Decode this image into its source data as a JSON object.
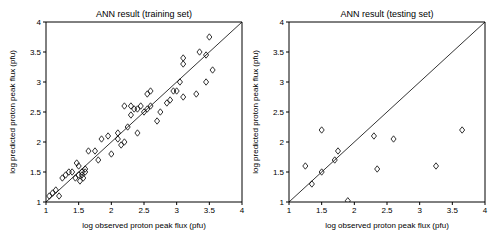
{
  "chart_data": [
    {
      "type": "scatter",
      "title": "ANN result (training set)",
      "x_label": "log observed proton peak flux (pfu)",
      "y_label": "log predicted proton peak flux (pfu)",
      "x": [
        1.05,
        1.1,
        1.15,
        1.2,
        1.25,
        1.3,
        1.35,
        1.4,
        1.45,
        1.47,
        1.5,
        1.5,
        1.52,
        1.55,
        1.55,
        1.57,
        1.6,
        1.6,
        1.65,
        1.75,
        1.8,
        1.85,
        1.95,
        2.0,
        2.1,
        2.1,
        2.15,
        2.2,
        2.2,
        2.25,
        2.3,
        2.3,
        2.35,
        2.4,
        2.4,
        2.45,
        2.5,
        2.55,
        2.55,
        2.6,
        2.6,
        2.7,
        2.75,
        2.85,
        2.9,
        2.95,
        3.0,
        3.05,
        3.1,
        3.1,
        3.1,
        3.3,
        3.35,
        3.45,
        3.45,
        3.5,
        3.55
      ],
      "values": [
        1.1,
        1.15,
        1.2,
        1.1,
        1.4,
        1.45,
        1.5,
        1.5,
        1.4,
        1.65,
        1.45,
        1.6,
        1.35,
        1.45,
        1.5,
        1.4,
        1.5,
        1.55,
        1.85,
        1.85,
        1.7,
        2.05,
        2.1,
        1.8,
        2.15,
        2.05,
        1.95,
        2.6,
        2.0,
        2.25,
        2.6,
        2.45,
        2.55,
        2.55,
        2.15,
        2.6,
        2.5,
        2.55,
        2.8,
        2.85,
        2.6,
        2.35,
        2.5,
        2.65,
        2.7,
        2.85,
        2.85,
        3.0,
        3.3,
        3.4,
        2.75,
        2.8,
        3.5,
        3.0,
        3.45,
        3.75,
        3.2
      ],
      "color": "#000000",
      "marker": "diamond",
      "xlim": [
        1,
        4
      ],
      "ylim": [
        1,
        4
      ],
      "xticks": [
        1,
        1.5,
        2,
        2.5,
        3,
        3.5,
        4
      ],
      "yticks": [
        1,
        1.5,
        2,
        2.5,
        3,
        3.5,
        4
      ],
      "grid": false
    },
    {
      "type": "scatter",
      "title": "ANN result (testing set)",
      "x_label": "log observed proton peak flux (pfu)",
      "y_label": "log predicted proton peak flux (pfu)",
      "x": [
        1.25,
        1.35,
        1.5,
        1.5,
        1.7,
        1.75,
        1.9,
        2.3,
        2.35,
        2.6,
        3.25,
        3.65
      ],
      "values": [
        1.6,
        1.3,
        1.5,
        2.2,
        1.7,
        1.85,
        1.02,
        2.1,
        1.55,
        2.05,
        1.6,
        2.2
      ],
      "color": "#000000",
      "marker": "diamond",
      "xlim": [
        1,
        4
      ],
      "ylim": [
        1,
        4
      ],
      "xticks": [
        1,
        1.5,
        2,
        2.5,
        3,
        3.5,
        4
      ],
      "yticks": [
        1,
        1.5,
        2,
        2.5,
        3,
        3.5,
        4
      ],
      "grid": false
    }
  ]
}
